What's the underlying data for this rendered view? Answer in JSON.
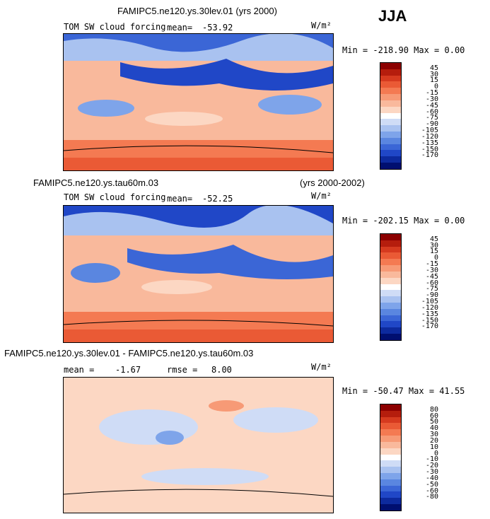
{
  "season": "JJA",
  "panels": [
    {
      "case_title": "FAMIPC5.ne120.ys.30lev.01 (yrs 2000)",
      "field": "TOM SW cloud forcing",
      "mean_label": "mean=",
      "mean_value": "-53.92",
      "units": "W/m²",
      "min_max": "Min = -218.90 Max =   0.00",
      "colorbar": {
        "labels": [
          "45",
          "30",
          "15",
          "0",
          "-15",
          "-30",
          "-45",
          "-60",
          "-75",
          "-90",
          "-105",
          "-120",
          "-135",
          "-150",
          "-170"
        ],
        "colors": [
          "#8c0000",
          "#b51d0d",
          "#d63a1f",
          "#ea5a35",
          "#f47a52",
          "#f79a76",
          "#f9b99c",
          "#fcd7c3",
          "#ffffff",
          "#cfdcf6",
          "#a9c2f0",
          "#7ea4ea",
          "#5a86e0",
          "#3b66d6",
          "#2047c7",
          "#0d2a9e",
          "#000f70"
        ]
      }
    },
    {
      "case_title": "FAMIPC5.ne120.ys.tau60m.03",
      "years": "(yrs 2000-2002)",
      "field": "TOM SW cloud forcing",
      "mean_label": "mean=",
      "mean_value": "-52.25",
      "units": "W/m²",
      "min_max": "Min = -202.15 Max =   0.00",
      "colorbar": {
        "labels": [
          "45",
          "30",
          "15",
          "0",
          "-15",
          "-30",
          "-45",
          "-60",
          "-75",
          "-90",
          "-105",
          "-120",
          "-135",
          "-150",
          "-170"
        ],
        "colors": [
          "#8c0000",
          "#b51d0d",
          "#d63a1f",
          "#ea5a35",
          "#f47a52",
          "#f79a76",
          "#f9b99c",
          "#fcd7c3",
          "#ffffff",
          "#cfdcf6",
          "#a9c2f0",
          "#7ea4ea",
          "#5a86e0",
          "#3b66d6",
          "#2047c7",
          "#0d2a9e",
          "#000f70"
        ]
      }
    },
    {
      "case_title": "FAMIPC5.ne120.ys.30lev.01 - FAMIPC5.ne120.ys.tau60m.03",
      "mean_label": "mean =",
      "mean_value": "-1.67",
      "rmse_label": "rmse =",
      "rmse_value": "8.00",
      "units": "W/m²",
      "min_max": "Min = -50.47 Max =  41.55",
      "colorbar": {
        "labels": [
          "80",
          "60",
          "50",
          "40",
          "30",
          "20",
          "10",
          "0",
          "-10",
          "-20",
          "-30",
          "-40",
          "-50",
          "-60",
          "-80"
        ],
        "colors": [
          "#8c0000",
          "#b51d0d",
          "#d63a1f",
          "#ea5a35",
          "#f47a52",
          "#f79a76",
          "#f9b99c",
          "#fcd7c3",
          "#ffffff",
          "#cfdcf6",
          "#a9c2f0",
          "#7ea4ea",
          "#5a86e0",
          "#3b66d6",
          "#2047c7",
          "#0d2a9e",
          "#000f70"
        ]
      }
    }
  ],
  "chart_data": {
    "type": "heatmap",
    "projection": "cylindrical equidistant, Pacific-centered world maps",
    "grid": false
  }
}
